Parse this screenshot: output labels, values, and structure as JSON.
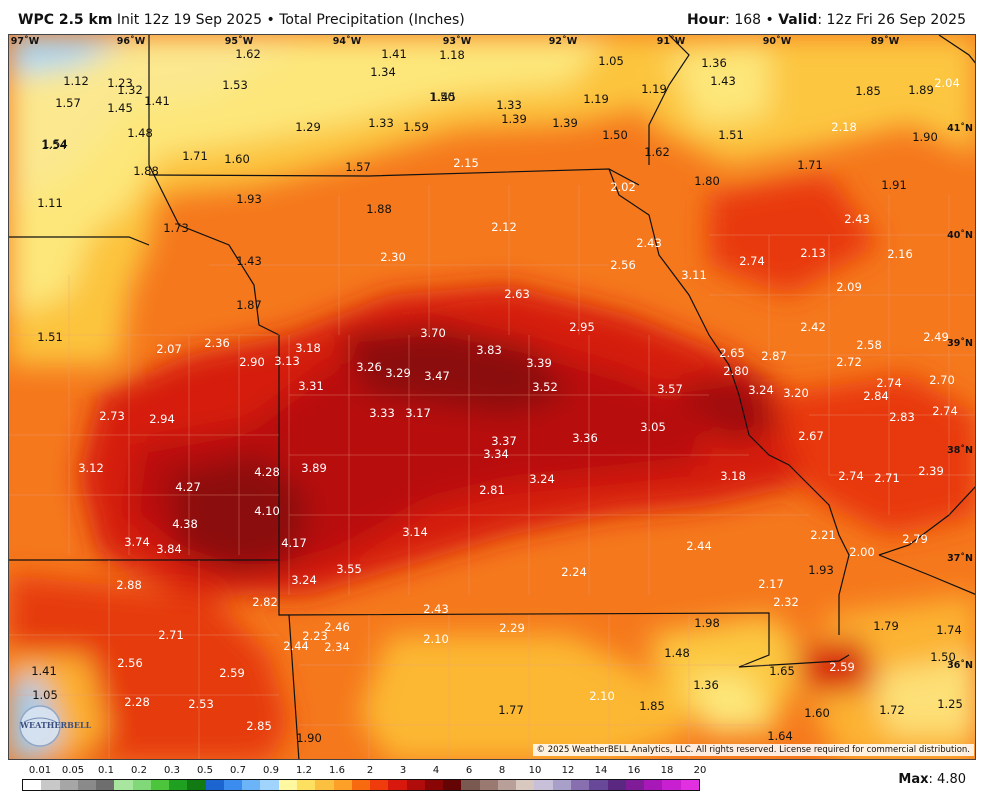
{
  "header": {
    "model": "WPC 2.5 km",
    "init": "Init 12z 19 Sep 2025",
    "sep": "•",
    "product": "Total Precipitation (Inches)",
    "hour_label": "Hour",
    "hour_value": ": 168",
    "valid_label": "Valid",
    "valid_value": ": 12z Fri 26 Sep 2025"
  },
  "map": {
    "longitudes": [
      "97˚W",
      "96˚W",
      "95˚W",
      "94˚W",
      "93˚W",
      "92˚W",
      "91˚W",
      "90˚W",
      "89˚W"
    ],
    "latitudes": [
      "41˚N",
      "40˚N",
      "39˚N",
      "38˚N",
      "37˚N",
      "36˚N"
    ],
    "values": [
      "1.62",
      "1.41",
      "1.18",
      "1.05",
      "1.36",
      "1.12",
      "1.23",
      "1.34",
      "1.43",
      "1.53",
      "2.04",
      "1.57",
      "1.32",
      "1.41",
      "1.45",
      "1.50",
      "1.33",
      "1.19",
      "1.19",
      "1.85",
      "1.89",
      "1.45",
      "1.39",
      "1.39",
      "1.54",
      "1.29",
      "1.33",
      "1.59",
      "1.50",
      "1.51",
      "2.18",
      "1.48",
      "1.90",
      "1.54",
      "1.71",
      "1.60",
      "1.62",
      "1.88",
      "1.57",
      "2.15",
      "1.71",
      "1.80",
      "2.02",
      "1.91",
      "1.11",
      "1.93",
      "1.88",
      "2.12",
      "2.43",
      "1.73",
      "2.43",
      "2.13",
      "2.16",
      "1.43",
      "2.30",
      "2.56",
      "3.11",
      "2.74",
      "2.63",
      "2.09",
      "1.87",
      "3.70",
      "2.95",
      "2.42",
      "1.51",
      "2.07",
      "2.36",
      "3.18",
      "3.83",
      "2.49",
      "2.90",
      "3.13",
      "2.65",
      "2.87",
      "2.58",
      "3.26",
      "3.29",
      "3.39",
      "2.80",
      "2.72",
      "3.47",
      "3.52",
      "3.57",
      "3.24",
      "3.20",
      "3.31",
      "2.74",
      "2.70",
      "2.84",
      "2.73",
      "2.94",
      "3.33",
      "3.17",
      "2.83",
      "2.74",
      "3.05",
      "3.37",
      "3.36",
      "2.67",
      "3.34",
      "3.12",
      "4.28",
      "3.89",
      "2.74",
      "2.71",
      "2.39",
      "3.24",
      "3.18",
      "4.27",
      "2.81",
      "4.10",
      "4.38",
      "3.14",
      "2.21",
      "2.79",
      "3.74",
      "3.84",
      "4.17",
      "2.44",
      "2.00",
      "3.55",
      "2.24",
      "1.93",
      "2.88",
      "3.24",
      "2.17",
      "2.82",
      "2.32",
      "2.43",
      "1.98",
      "2.71",
      "2.46",
      "2.23",
      "2.29",
      "1.79",
      "1.74",
      "2.10",
      "2.34",
      "2.44",
      "1.48",
      "2.56",
      "1.50",
      "2.59",
      "1.65",
      "2.59",
      "1.41",
      "1.36",
      "2.10",
      "1.05",
      "2.28",
      "2.53",
      "1.85",
      "1.77",
      "1.72",
      "1.25",
      "2.85",
      "1.90",
      "1.60",
      "1.64"
    ]
  },
  "credit": "© 2025 WeatherBELL Analytics, LLC. All rights reserved. License required for commercial distribution.",
  "logo_text": "WEATHERBELL",
  "scale": {
    "labels": [
      "0.01",
      "0.05",
      "0.1",
      "0.2",
      "0.3",
      "0.5",
      "0.7",
      "0.9",
      "1.2",
      "1.6",
      "2",
      "3",
      "4",
      "6",
      "8",
      "10",
      "12",
      "14",
      "16",
      "18",
      "20"
    ],
    "colors": [
      "#ffffff",
      "#c8c8c8",
      "#a6a6a6",
      "#8a8a8a",
      "#6e6e6e",
      "#a8e6a0",
      "#80d878",
      "#4cc43c",
      "#20a020",
      "#127a12",
      "#1c64d0",
      "#3c8cf0",
      "#6cb4f8",
      "#a0d4fc",
      "#fff8a0",
      "#fde060",
      "#fcc040",
      "#fca028",
      "#f86a10",
      "#f03c0c",
      "#d8180c",
      "#b00c0c",
      "#8a0606",
      "#640404",
      "#7a5a50",
      "#9a7a70",
      "#b8a098",
      "#d8c8c0",
      "#c8c0d8",
      "#a8a0c8",
      "#8870b0",
      "#684898",
      "#5a2880",
      "#801c98",
      "#a818b8",
      "#c820d0",
      "#e030e0"
    ]
  },
  "max": {
    "label": "Max",
    "value": ": 4.80"
  }
}
